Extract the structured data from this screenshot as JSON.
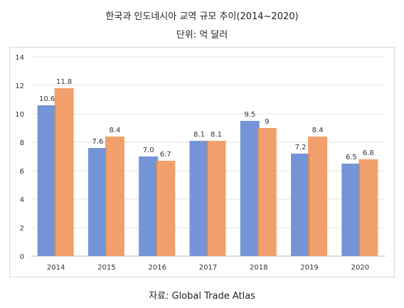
{
  "header": {
    "title": "한국과 인도네시아 교역 규모 추이(2014~2020)",
    "unit": "단위: 억 달러"
  },
  "footer": {
    "source": "자료: Global Trade Atlas"
  },
  "colors": {
    "series1": "#7394d6",
    "series2": "#f2a06b",
    "grid": "#e4e4e4",
    "axis_text": "#333333"
  },
  "chart_data": {
    "type": "bar",
    "categories": [
      "2014",
      "2015",
      "2016",
      "2017",
      "2018",
      "2019",
      "2020"
    ],
    "series": [
      {
        "values": [
          10.6,
          7.6,
          7.0,
          8.1,
          9.5,
          7.2,
          6.5
        ],
        "labels": [
          "10.6",
          "7.6",
          "7.0",
          "8.1",
          "9.5",
          "7.2",
          "6.5"
        ]
      },
      {
        "values": [
          11.8,
          8.4,
          6.7,
          8.1,
          9,
          8.4,
          6.8
        ],
        "labels": [
          "11.8",
          "8.4",
          "6.7",
          "8.1",
          "9",
          "8.4",
          "6.8"
        ]
      }
    ],
    "y_ticks": [
      "0",
      "2",
      "4",
      "6",
      "8",
      "10",
      "12",
      "14"
    ],
    "ylim": [
      0,
      14
    ],
    "grid": true,
    "legend": "none"
  }
}
